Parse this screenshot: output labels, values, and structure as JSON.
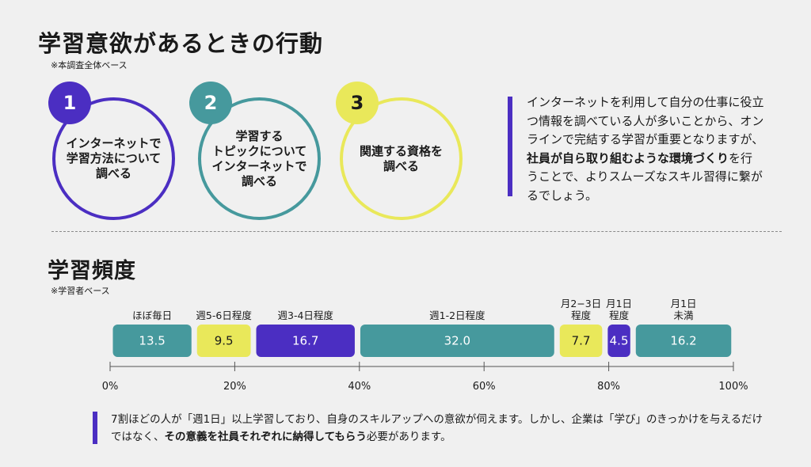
{
  "colors": {
    "purple": "#4b2ec2",
    "teal": "#46999d",
    "yellow": "#e9e85a"
  },
  "section1": {
    "title": "学習意欲があるときの行動",
    "note": "※本調査全体ベース",
    "actions": [
      {
        "number": "1",
        "text": "インターネットで\n学習方法について\n調べる",
        "color": "purple"
      },
      {
        "number": "2",
        "text": "学習する\nトピックについて\nインターネットで\n調べる",
        "color": "teal"
      },
      {
        "number": "3",
        "text": "関連する資格を\n調べる",
        "color": "yellow"
      }
    ],
    "description": {
      "part1": "インターネットを利用して自分の仕事に役立つ情報を調べている人が多いことから、オンラインで完結する学習が重要となりますが、",
      "bold": "社員が自ら取り組むような環境づくり",
      "part2": "を行うことで、よりスムーズなスキル習得に繋がるでしょう。"
    }
  },
  "section2": {
    "title": "学習頻度",
    "note": "※学習者ベース",
    "conclusion": {
      "part1": "7割ほどの人が「週1日」以上学習しており、自身のスキルアップへの意欲が伺えます。しかし、企業は「学び」のきっかけを与えるだけではなく、",
      "bold": "その意義を社員それぞれに納得してもらう",
      "part2": "必要があります。"
    }
  },
  "chart_data": {
    "type": "bar",
    "orientation": "horizontal-stacked",
    "categories": [
      "ほぼ毎日",
      "週5-6日程度",
      "週3-4日程度",
      "週1-2日程度",
      "月2−3日\n程度",
      "月1日\n程度",
      "月1日\n未満"
    ],
    "values": [
      13.5,
      9.5,
      16.7,
      32.0,
      7.7,
      4.5,
      16.2
    ],
    "value_labels": [
      "13.5",
      "9.5",
      "16.7",
      "32.0",
      "7.7",
      "4.5",
      "16.2"
    ],
    "colors": [
      "#46999d",
      "#e9e85a",
      "#4b2ec2",
      "#46999d",
      "#e9e85a",
      "#4b2ec2",
      "#46999d"
    ],
    "xlim": [
      0,
      100
    ],
    "xticks": [
      0,
      20,
      40,
      60,
      80,
      100
    ],
    "tick_labels": [
      "0%",
      "20%",
      "40%",
      "60%",
      "80%",
      "100%"
    ]
  }
}
